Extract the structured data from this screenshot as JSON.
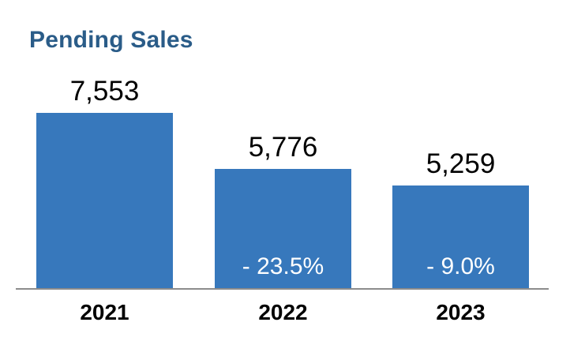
{
  "header": {
    "title": "Pending Sales"
  },
  "chart_data": {
    "type": "bar",
    "title": "Pending Sales",
    "categories": [
      "2021",
      "2022",
      "2023"
    ],
    "values": [
      7553,
      5776,
      5259
    ],
    "value_labels": [
      "7,553",
      "5,776",
      "5,259"
    ],
    "change_labels": [
      "",
      "- 23.5%",
      "- 9.0%"
    ],
    "ylim": [
      2000,
      7553
    ],
    "grid": false,
    "legend": false,
    "layout_hints": {
      "value_label_position": "above bar",
      "change_label_position": "inside bar, bottom center",
      "x_axis_line": "single gray baseline, no y-axis"
    },
    "colors": {
      "bar": "#3778BC",
      "title": "#2A5C88",
      "axis_line": "#8C8C8C",
      "value_label": "#000000",
      "category_label": "#000000",
      "change_label": "#FFFFFF",
      "background": "#FFFFFF"
    }
  }
}
